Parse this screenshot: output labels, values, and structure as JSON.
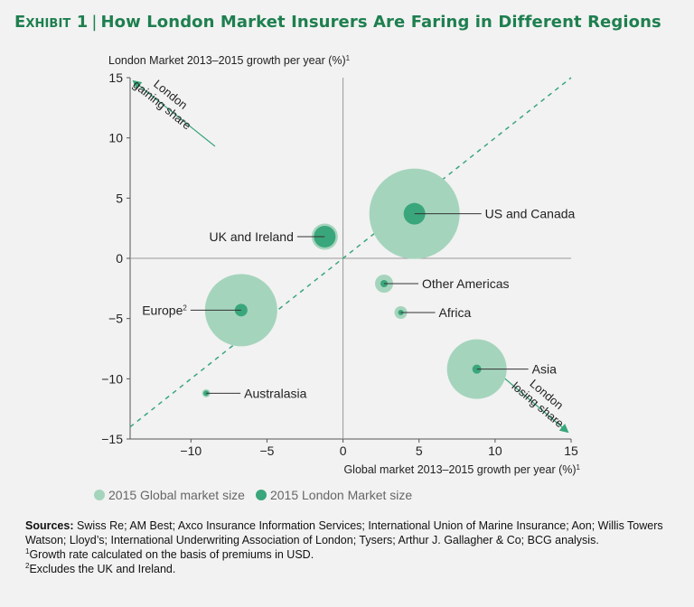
{
  "title": {
    "exhibit": "Exhibit 1",
    "separator": "|",
    "text": "How London Market Insurers Are Faring in Different Regions"
  },
  "chart_data": {
    "type": "scatter",
    "ylabel": "London Market  2013–2015 growth per year (%)",
    "ylabel_sup": "1",
    "xlabel": "Global market 2013–2015 growth per year (%)",
    "xlabel_sup": "1",
    "xlim": [
      -14,
      15
    ],
    "ylim": [
      -15,
      15
    ],
    "x_ticks": [
      -10,
      -5,
      0,
      5,
      10,
      15
    ],
    "y_ticks": [
      15,
      10,
      5,
      0,
      -5,
      -10,
      -15
    ],
    "x_tick_labels": [
      "−10",
      "−5",
      "0",
      "5",
      "10",
      "15"
    ],
    "y_tick_labels": [
      "15",
      "10",
      "5",
      "0",
      "−5",
      "−10",
      "−15"
    ],
    "diagonal": "dashed y = x",
    "series": [
      {
        "name": "2015 Global market size",
        "color": "#a5d4bd"
      },
      {
        "name": "2015 London Market size",
        "color": "#3aa67b"
      }
    ],
    "points": [
      {
        "label": "US and Canada",
        "sup": "",
        "x": 4.7,
        "y": 3.7,
        "global_size": 1.0,
        "london_size": 0.24,
        "label_side": "right"
      },
      {
        "label": "UK and Ireland",
        "sup": "",
        "x": -1.2,
        "y": 1.8,
        "global_size": 0.29,
        "london_size": 0.24,
        "label_side": "left"
      },
      {
        "label": "Other Americas",
        "sup": "",
        "x": 2.7,
        "y": -2.1,
        "global_size": 0.2,
        "london_size": 0.08,
        "label_side": "right"
      },
      {
        "label": "Africa",
        "sup": "",
        "x": 3.8,
        "y": -4.5,
        "global_size": 0.14,
        "london_size": 0.04,
        "label_side": "right"
      },
      {
        "label": "Europe",
        "sup": "2",
        "x": -6.7,
        "y": -4.3,
        "global_size": 0.8,
        "london_size": 0.14,
        "label_side": "left"
      },
      {
        "label": "Asia",
        "sup": "",
        "x": 8.8,
        "y": -9.2,
        "global_size": 0.66,
        "london_size": 0.1,
        "label_side": "right"
      },
      {
        "label": "Australasia",
        "sup": "",
        "x": -9.0,
        "y": -11.2,
        "global_size": 0.09,
        "london_size": 0.04,
        "label_side": "right"
      }
    ],
    "annotations": [
      {
        "text_lines": [
          "London",
          "gaining share"
        ],
        "direction": "up-left"
      },
      {
        "text_lines": [
          "London",
          "losing share"
        ],
        "direction": "down-right"
      }
    ]
  },
  "legend": {
    "global": "2015 Global market size",
    "london": "2015 London Market size",
    "global_color": "#a5d4bd",
    "london_color": "#3aa67b"
  },
  "notes": {
    "sources_label": "Sources:",
    "sources_text": "Swiss Re; AM Best; Axco Insurance Information Services; International Union of Marine Insurance; Aon; Willis Towers Watson; Lloyd’s; International Underwriting Association of London; Tysers; Arthur J. Gallagher & Co; BCG analysis.",
    "note1_mark": "1",
    "note1": "Growth rate calculated on the basis of premiums in USD.",
    "note2_mark": "2",
    "note2": "Excludes the UK and Ireland."
  }
}
